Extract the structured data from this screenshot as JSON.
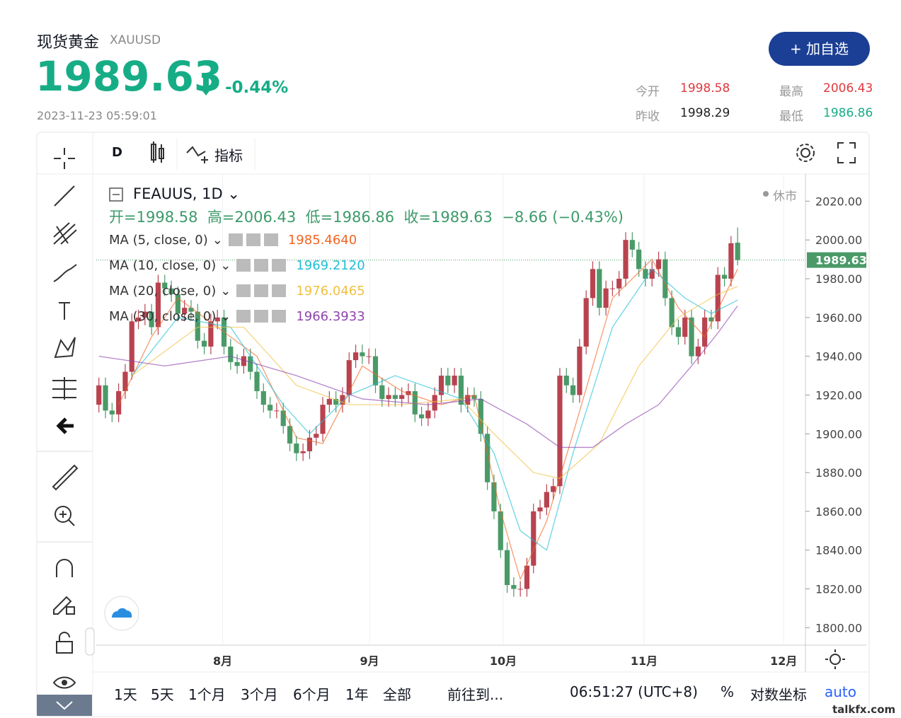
{
  "header": {
    "name": "现货黄金",
    "symbol": "XAUUSD",
    "change": "-0.44%",
    "time": "2023-11-23 05:59:01",
    "button": "+ 加自选",
    "stat_labels": [
      "今开",
      "最高",
      "昨收",
      "最低"
    ]
  },
  "toolbar": {
    "interval": "D",
    "indicators": "指标"
  },
  "chart_data": {
    "type": "candlestick",
    "title": "FEAUUS, 1D",
    "status": "休市",
    "ohlc_labels": [
      "开=",
      "高=",
      "低=",
      "收="
    ],
    "change": "−8.66 (−0.43%)",
    "up_color": "#b8434f",
    "down_color": "#4a9a68",
    "open": [
      1915,
      1925,
      1912,
      1910,
      1922,
      1932,
      1958,
      1960,
      1963,
      1955,
      1978,
      1975,
      1972,
      1962,
      1965,
      1963,
      1948,
      1945,
      1958,
      1960,
      1945,
      1937,
      1935,
      1940,
      1932,
      1922,
      1915,
      1912,
      1912,
      1904,
      1895,
      1890,
      1891,
      1898,
      1900,
      1915,
      1918,
      1915,
      1920,
      1938,
      1942,
      1940,
      1940,
      1925,
      1918,
      1920,
      1918,
      1920,
      1922,
      1910,
      1908,
      1912,
      1920,
      1930,
      1925,
      1930,
      1915,
      1920,
      1918,
      1900,
      1875,
      1860,
      1840,
      1822,
      1820,
      1820,
      1832,
      1860,
      1862,
      1870,
      1873,
      1930,
      1925,
      1920,
      1945,
      1970,
      1985,
      1965,
      1975,
      1975,
      1980,
      2000,
      1995,
      1985,
      1980,
      1985,
      1990,
      1970,
      1955,
      1950,
      1960,
      1940,
      1945,
      1960,
      1958,
      1982,
      1980,
      1998.58
    ],
    "high": [
      1929,
      1929,
      1916,
      1926,
      1936,
      1962,
      1964,
      1967,
      1967,
      1982,
      1982,
      1979,
      1976,
      1969,
      1969,
      1967,
      1952,
      1962,
      1964,
      1964,
      1949,
      1941,
      1944,
      1944,
      1936,
      1926,
      1919,
      1916,
      1916,
      1908,
      1899,
      1895,
      1902,
      1904,
      1919,
      1922,
      1922,
      1924,
      1942,
      1946,
      1946,
      1944,
      1944,
      1929,
      1924,
      1924,
      1924,
      1926,
      1926,
      1914,
      1916,
      1924,
      1934,
      1934,
      1934,
      1934,
      1924,
      1924,
      1922,
      1904,
      1879,
      1864,
      1844,
      1826,
      1824,
      1836,
      1864,
      1866,
      1874,
      1877,
      1934,
      1934,
      1929,
      1949,
      1974,
      1989,
      1989,
      1979,
      1979,
      1984,
      2004,
      2004,
      1999,
      1989,
      1989,
      1994,
      1994,
      1974,
      1959,
      1964,
      1964,
      1949,
      1964,
      1964,
      1986,
      1986,
      2002,
      2006.43
    ],
    "low": [
      1911,
      1908,
      1906,
      1906,
      1918,
      1928,
      1954,
      1956,
      1951,
      1951,
      1971,
      1968,
      1958,
      1958,
      1959,
      1944,
      1941,
      1941,
      1954,
      1941,
      1933,
      1931,
      1931,
      1928,
      1918,
      1911,
      1908,
      1908,
      1900,
      1891,
      1886,
      1886,
      1887,
      1894,
      1896,
      1911,
      1911,
      1911,
      1916,
      1934,
      1936,
      1936,
      1921,
      1914,
      1914,
      1914,
      1914,
      1916,
      1906,
      1904,
      1904,
      1908,
      1916,
      1921,
      1921,
      1911,
      1911,
      1914,
      1896,
      1871,
      1856,
      1836,
      1818,
      1816,
      1816,
      1816,
      1828,
      1856,
      1858,
      1866,
      1869,
      1921,
      1916,
      1916,
      1941,
      1966,
      1961,
      1961,
      1971,
      1971,
      1976,
      1991,
      1981,
      1976,
      1976,
      1981,
      1966,
      1951,
      1946,
      1946,
      1936,
      1936,
      1941,
      1954,
      1954,
      1976,
      1976,
      1986.86
    ],
    "close": [
      1925,
      1912,
      1910,
      1922,
      1932,
      1958,
      1960,
      1963,
      1955,
      1978,
      1975,
      1972,
      1962,
      1965,
      1963,
      1948,
      1945,
      1958,
      1960,
      1945,
      1937,
      1935,
      1940,
      1932,
      1922,
      1915,
      1912,
      1912,
      1904,
      1895,
      1890,
      1891,
      1898,
      1900,
      1915,
      1918,
      1915,
      1920,
      1938,
      1942,
      1940,
      1940,
      1925,
      1918,
      1920,
      1918,
      1920,
      1922,
      1910,
      1908,
      1912,
      1920,
      1930,
      1925,
      1930,
      1915,
      1920,
      1918,
      1900,
      1875,
      1860,
      1840,
      1822,
      1820,
      1820,
      1832,
      1860,
      1862,
      1870,
      1873,
      1930,
      1925,
      1920,
      1945,
      1970,
      1985,
      1965,
      1975,
      1975,
      1980,
      2000,
      1995,
      1985,
      1980,
      1985,
      1990,
      1970,
      1955,
      1950,
      1960,
      1940,
      1945,
      1960,
      1958,
      1982,
      1980,
      1998.29,
      1989.63
    ],
    "series": [
      {
        "name": "MA (5, close, 0)",
        "color": "#f26522",
        "value_label": "1985.4640",
        "x": [
          3,
          8,
          12,
          18,
          24,
          30,
          34,
          40,
          46,
          52,
          57,
          61,
          64,
          68,
          72,
          78,
          84,
          88,
          92,
          97
        ],
        "values": [
          1915,
          1950,
          1970,
          1955,
          1940,
          1898,
          1895,
          1935,
          1922,
          1915,
          1920,
          1860,
          1825,
          1855,
          1900,
          1970,
          1990,
          1965,
          1950,
          1985
        ]
      },
      {
        "name": "MA (10, close, 0)",
        "color": "#1fbfd4",
        "value_label": "1969.2120",
        "x": [
          5,
          12,
          20,
          28,
          32,
          38,
          45,
          55,
          60,
          64,
          68,
          72,
          78,
          84,
          89,
          93,
          97
        ],
        "values": [
          1930,
          1960,
          1955,
          1915,
          1900,
          1920,
          1930,
          1918,
          1890,
          1850,
          1840,
          1890,
          1955,
          1985,
          1970,
          1962,
          1969
        ]
      },
      {
        "name": "MA (20, close, 0)",
        "color": "#f0c040",
        "value_label": "1976.0465",
        "x": [
          5,
          15,
          22,
          30,
          38,
          46,
          55,
          60,
          66,
          70,
          76,
          82,
          88,
          94,
          97
        ],
        "values": [
          1930,
          1955,
          1955,
          1925,
          1915,
          1915,
          1918,
          1900,
          1880,
          1877,
          1895,
          1935,
          1960,
          1972,
          1976
        ]
      },
      {
        "name": "MA (30, close, 0)",
        "color": "#8e44ad",
        "value_label": "1966.3933",
        "x": [
          0,
          10,
          20,
          30,
          40,
          50,
          58,
          65,
          70,
          75,
          80,
          85,
          90,
          94,
          97
        ],
        "values": [
          1940,
          1935,
          1940,
          1930,
          1918,
          1915,
          1918,
          1905,
          1893,
          1893,
          1905,
          1915,
          1935,
          1952,
          1966
        ]
      }
    ],
    "xlim": [
      -0.4,
      107.3
    ],
    "xticks": [
      {
        "value": 18.8,
        "label": "8月"
      },
      {
        "value": 41.1,
        "label": "9月"
      },
      {
        "value": 61.4,
        "label": "10月"
      },
      {
        "value": 82.8,
        "label": "11月"
      },
      {
        "value": 104,
        "label": "12月"
      }
    ],
    "ylim": [
      1791,
      2034
    ],
    "yticks": [
      {
        "value": 1800,
        "label": "1800.00"
      },
      {
        "value": 1820,
        "label": "1820.00"
      },
      {
        "value": 1840,
        "label": "1840.00"
      },
      {
        "value": 1860,
        "label": "1860.00"
      },
      {
        "value": 1880,
        "label": "1880.00"
      },
      {
        "value": 1900,
        "label": "1900.00"
      },
      {
        "value": 1920,
        "label": "1920.00"
      },
      {
        "value": 1940,
        "label": "1940.00"
      },
      {
        "value": 1960,
        "label": "1960.00"
      },
      {
        "value": 1980,
        "label": "1980.00"
      },
      {
        "value": 2000,
        "label": "2000.00"
      },
      {
        "value": 2020,
        "label": "2020.00"
      }
    ]
  },
  "bottom_bar": {
    "ranges": [
      "1天",
      "5天",
      "1个月",
      "3个月",
      "6个月",
      "1年",
      "全部"
    ],
    "goto": "前往到...",
    "clock": "06:51:27 (UTC+8)",
    "percent": "%",
    "log": "对数坐标",
    "auto": "auto"
  },
  "watermark": "talkfx.com"
}
